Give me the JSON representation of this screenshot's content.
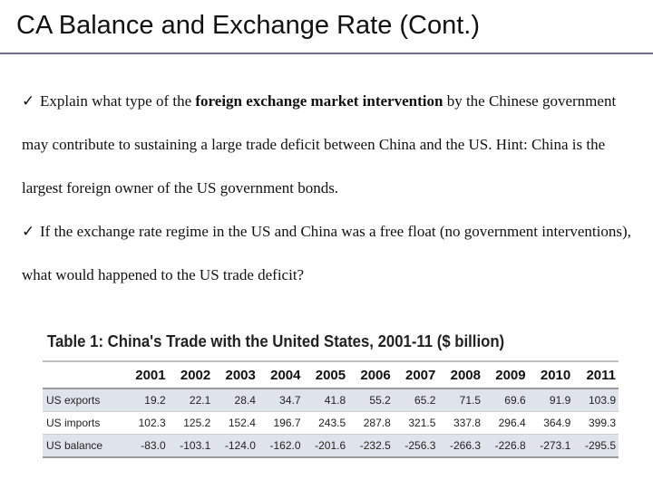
{
  "slide": {
    "title": "CA Balance and Exchange Rate (Cont.)"
  },
  "bullets": [
    {
      "check": "✓",
      "text_before": "Explain what type of the ",
      "text_bold": "foreign exchange market intervention",
      "text_after": " by the Chinese government may contribute to sustaining a large trade deficit between China and the US. Hint: China is the largest foreign owner of the US government bonds."
    },
    {
      "check": "✓",
      "text": "If the exchange rate regime in the US and China was a free float (no government interventions), what would happened to the US trade deficit?"
    }
  ],
  "table": {
    "title": "Table 1: China's Trade with the United States, 2001-11 ($ billion)",
    "years": [
      "2001",
      "2002",
      "2003",
      "2004",
      "2005",
      "2006",
      "2007",
      "2008",
      "2009",
      "2010",
      "2011"
    ],
    "rows": [
      {
        "label": "US exports",
        "values": [
          "19.2",
          "22.1",
          "28.4",
          "34.7",
          "41.8",
          "55.2",
          "65.2",
          "71.5",
          "69.6",
          "91.9",
          "103.9"
        ]
      },
      {
        "label": "US imports",
        "values": [
          "102.3",
          "125.2",
          "152.4",
          "196.7",
          "243.5",
          "287.8",
          "321.5",
          "337.8",
          "296.4",
          "364.9",
          "399.3"
        ]
      },
      {
        "label": "US balance",
        "values": [
          "-83.0",
          "-103.1",
          "-124.0",
          "-162.0",
          "-201.6",
          "-232.5",
          "-256.3",
          "-266.3",
          "-226.8",
          "-273.1",
          "-295.5"
        ]
      }
    ]
  }
}
